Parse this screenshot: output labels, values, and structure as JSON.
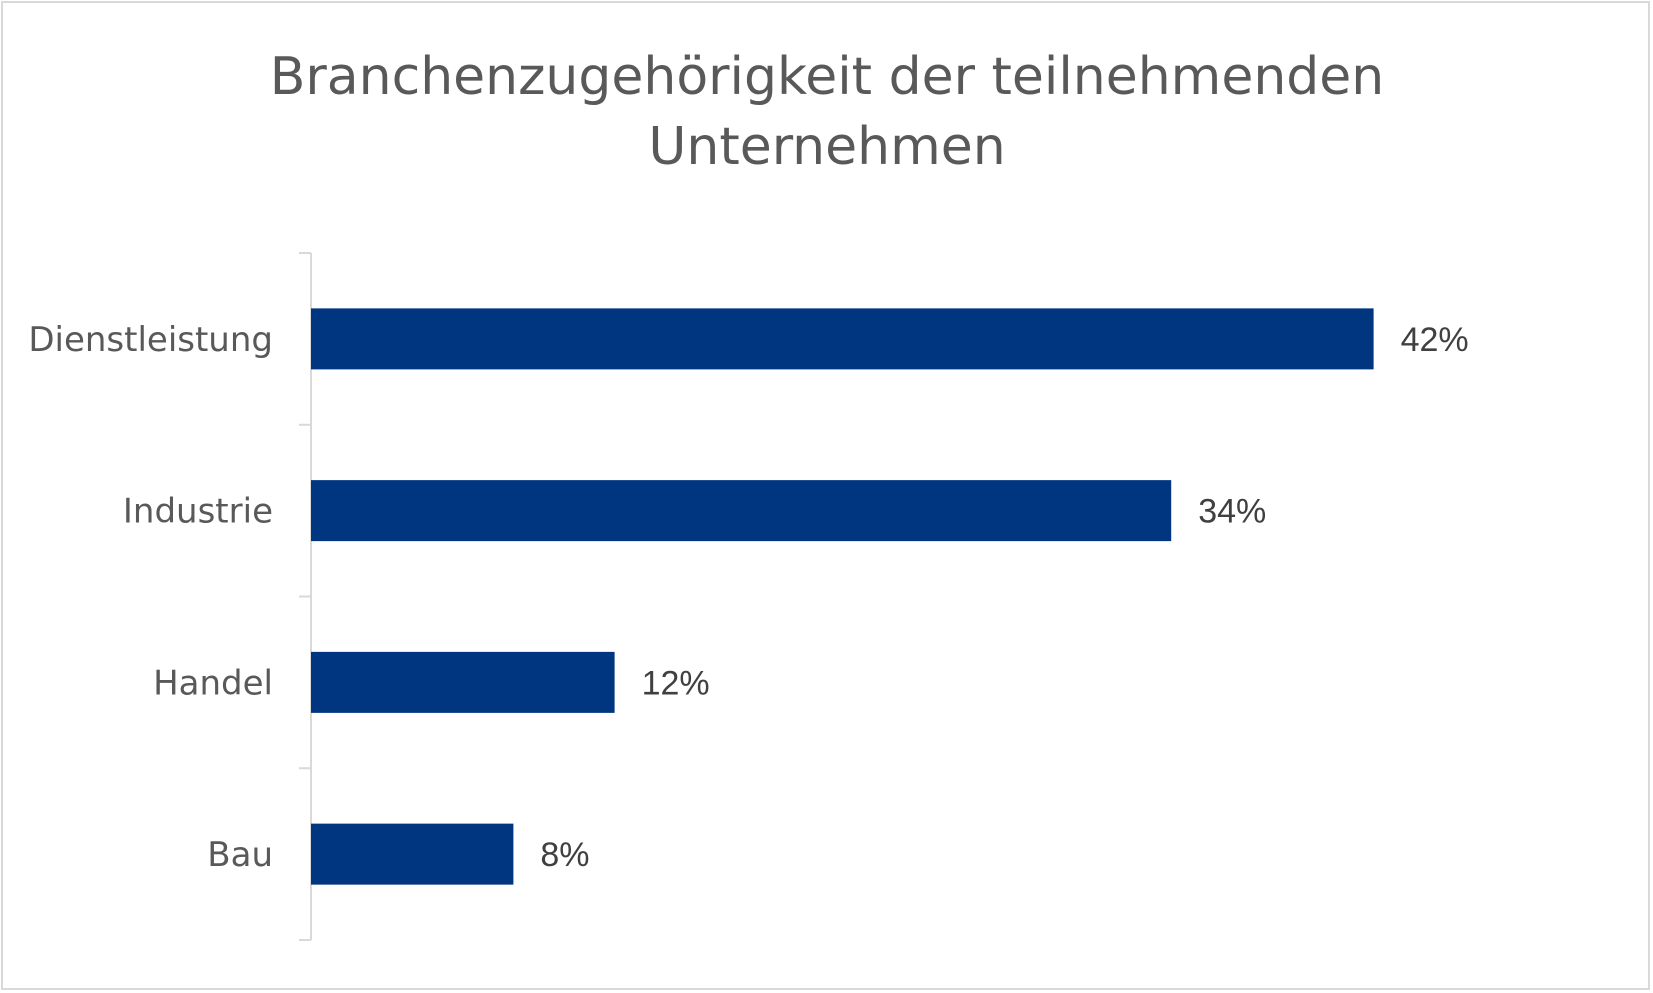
{
  "chart_data": {
    "type": "bar",
    "orientation": "horizontal",
    "title_lines": [
      "Branchenzugehörigkeit der teilnehmenden",
      "Unternehmen"
    ],
    "categories": [
      "Dienstleistung",
      "Industrie",
      "Handel",
      "Bau"
    ],
    "values": [
      42,
      34,
      12,
      8
    ],
    "value_labels": [
      "42%",
      "34%",
      "12%",
      "8%"
    ],
    "xlim": [
      0,
      50
    ],
    "xlabel": "",
    "ylabel": "",
    "grid": false,
    "legend": "none",
    "colors": {
      "bar": "#003580",
      "axis": "#d9d9d9",
      "frame": "#d9d9d9",
      "title": "#595959",
      "category_text": "#595959",
      "value_text": "#404040"
    }
  }
}
